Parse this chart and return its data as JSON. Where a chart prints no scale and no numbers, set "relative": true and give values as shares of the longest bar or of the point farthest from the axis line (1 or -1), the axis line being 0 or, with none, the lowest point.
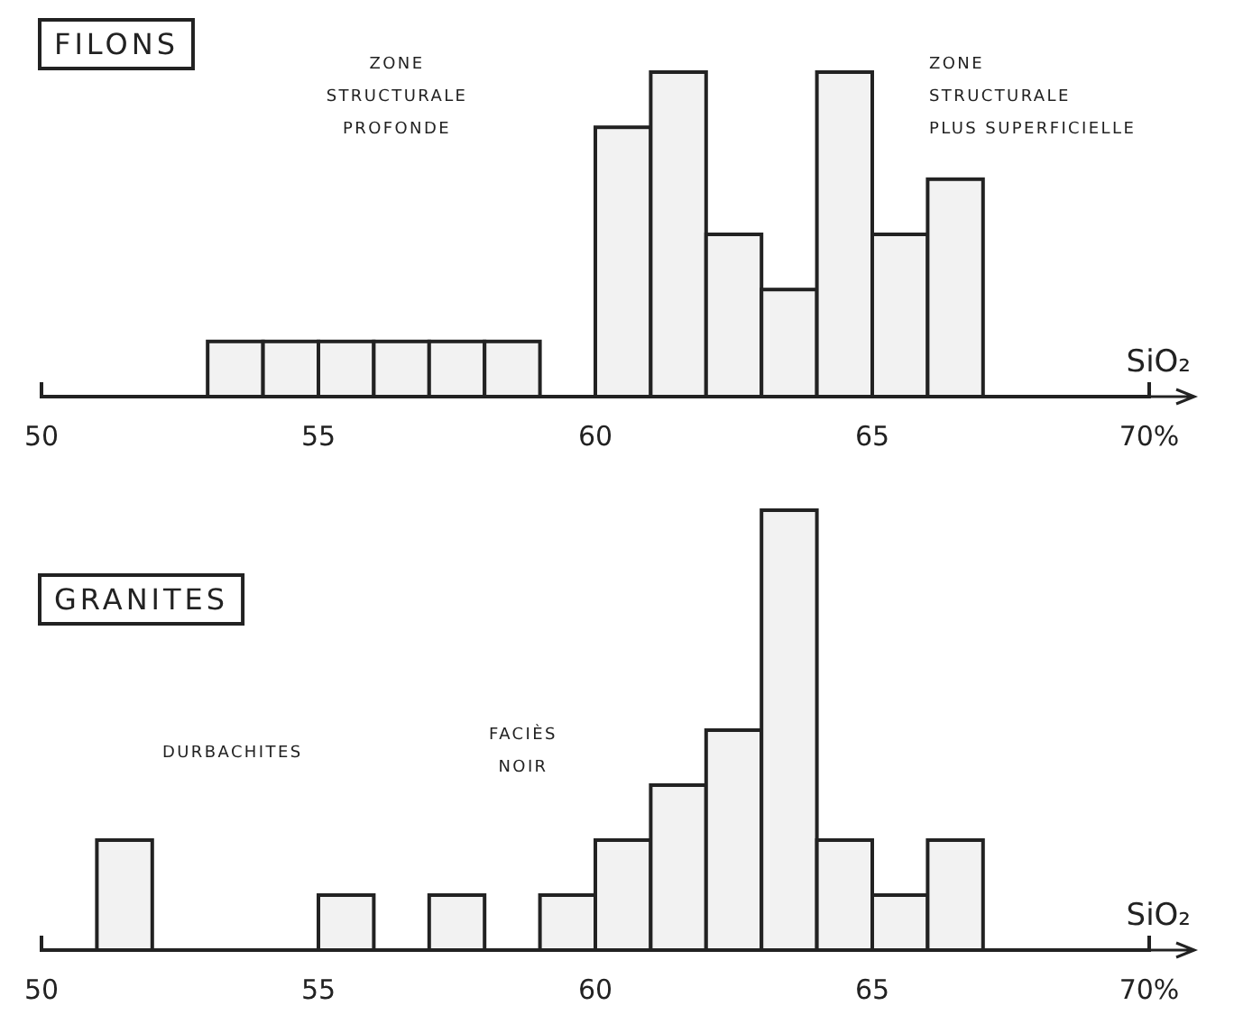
{
  "chart_data": [
    {
      "type": "bar",
      "title": "FILONS",
      "xlabel": "SiO₂",
      "relative": true,
      "color": "#222222",
      "x": [
        53.5,
        54.5,
        55.5,
        56.5,
        57.5,
        58.5,
        59.5,
        60.5,
        61.5,
        62.5,
        63.5,
        64.5,
        65.5,
        66.5
      ],
      "values": [
        0.17,
        0.17,
        0.17,
        0.17,
        0.17,
        0.17,
        0,
        0.83,
        1,
        0.5,
        0.33,
        1,
        0.5,
        0.67
      ],
      "xlim": [
        50,
        70
      ],
      "xticks": [
        50,
        55,
        60,
        65,
        {
          "value": 70,
          "label": "70%"
        }
      ],
      "annotations": [
        "ZONE\nSTRUCTURALE\nPROFONDE",
        "ZONE\nSTRUCTURALE\nPLUS SUPERFICIELLE"
      ]
    },
    {
      "type": "bar",
      "title": "GRANITES",
      "xlabel": "SiO₂",
      "relative": true,
      "color": "#222222",
      "x": [
        51.5,
        52.5,
        53.5,
        54.5,
        55.5,
        56.5,
        57.5,
        58.5,
        59.5,
        60.5,
        61.5,
        62.5,
        63.5,
        64.5,
        65.5,
        66.5
      ],
      "values": [
        0.25,
        0,
        0,
        0,
        0.125,
        0,
        0.125,
        0,
        0.125,
        0.25,
        0.375,
        0.5,
        1,
        0.25,
        0.125,
        0.25
      ],
      "xlim": [
        50,
        70
      ],
      "xticks": [
        50,
        55,
        60,
        65,
        {
          "value": 70,
          "label": "70%"
        }
      ],
      "annotations": [
        "DURBACHITES",
        "FACIÈS\nNOIR"
      ]
    }
  ]
}
